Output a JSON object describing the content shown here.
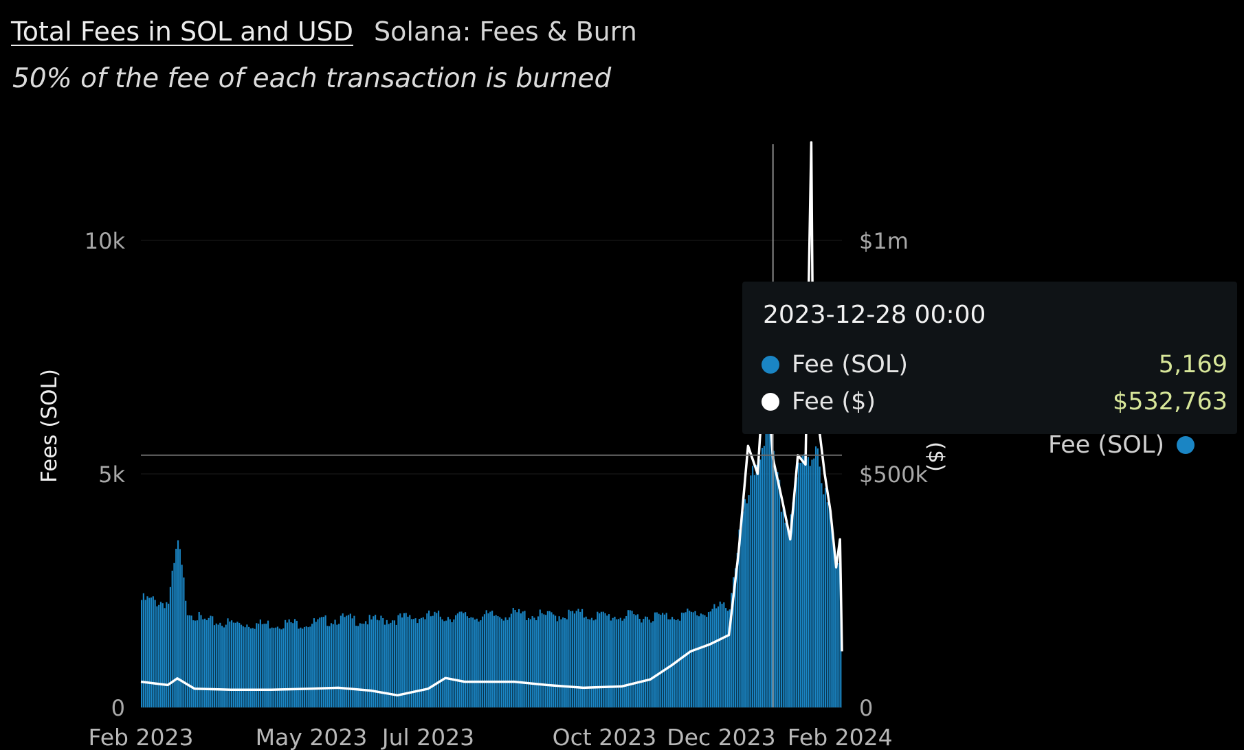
{
  "header": {
    "title": "Total Fees in SOL and USD",
    "source": "Solana: Fees & Burn",
    "subtitle": "50% of the fee of each transaction is burned"
  },
  "tooltip": {
    "date": "2023-12-28 00:00",
    "rows": [
      {
        "label": "Fee (SOL)",
        "value": "5,169",
        "color": "#1a85c4"
      },
      {
        "label": "Fee ($)",
        "value": "$532,763",
        "color": "#ffffff"
      }
    ]
  },
  "legend": {
    "items": [
      {
        "label": "Fee (SOL)",
        "color": "#1a85c4"
      }
    ]
  },
  "colors": {
    "background": "#000000",
    "sol_bars": "#1a85c4",
    "usd_line": "#ffffff",
    "tooltip_value": "#d8e79a"
  },
  "chart_data": {
    "type": "bar",
    "title": "Total Fees in SOL and USD",
    "ylabel": "Fees (SOL)",
    "y2label": "($)",
    "ylim": [
      0,
      10000
    ],
    "y2lim": [
      0,
      1000000
    ],
    "yticks": [
      {
        "value": 0,
        "label": "0"
      },
      {
        "value": 5000,
        "label": "5k"
      },
      {
        "value": 10000,
        "label": "10k"
      }
    ],
    "y2ticks": [
      {
        "value": 0,
        "label": "0"
      },
      {
        "value": 500000,
        "label": "$500k"
      },
      {
        "value": 1000000,
        "label": "$1m"
      }
    ],
    "xticks": [
      "Feb 2023",
      "May 2023",
      "Jul 2023",
      "Oct 2023",
      "Dec 2023",
      "Feb 2024"
    ],
    "xticks_dates": [
      "2023-02-01",
      "2023-05-01",
      "2023-07-01",
      "2023-10-01",
      "2023-12-01",
      "2024-02-01"
    ],
    "xlim": [
      "2023-02-01",
      "2024-02-02"
    ],
    "hover_date": "2023-12-28",
    "hover_level_sol": 5400,
    "grid": true,
    "legend_position": "right",
    "series": [
      {
        "name": "Fee (SOL)",
        "type": "bar",
        "axis": "left",
        "points": [
          [
            "2023-02-01",
            2300
          ],
          [
            "2023-02-15",
            2250
          ],
          [
            "2023-02-20",
            3500
          ],
          [
            "2023-02-25",
            2100
          ],
          [
            "2023-03-05",
            1850
          ],
          [
            "2023-03-20",
            1800
          ],
          [
            "2023-04-05",
            1780
          ],
          [
            "2023-04-20",
            1800
          ],
          [
            "2023-05-01",
            1800
          ],
          [
            "2023-05-15",
            1900
          ],
          [
            "2023-06-01",
            1850
          ],
          [
            "2023-06-15",
            1900
          ],
          [
            "2023-07-01",
            1950
          ],
          [
            "2023-07-15",
            1950
          ],
          [
            "2023-08-01",
            1950
          ],
          [
            "2023-08-15",
            2000
          ],
          [
            "2023-09-01",
            1950
          ],
          [
            "2023-09-15",
            2000
          ],
          [
            "2023-10-01",
            1950
          ],
          [
            "2023-10-15",
            1950
          ],
          [
            "2023-11-01",
            1950
          ],
          [
            "2023-11-15",
            2000
          ],
          [
            "2023-11-25",
            2050
          ],
          [
            "2023-12-01",
            2150
          ],
          [
            "2023-12-05",
            2200
          ],
          [
            "2023-12-10",
            3700
          ],
          [
            "2023-12-15",
            4500
          ],
          [
            "2023-12-20",
            5400
          ],
          [
            "2023-12-25",
            6200
          ],
          [
            "2023-12-28",
            5169
          ],
          [
            "2024-01-01",
            4400
          ],
          [
            "2024-01-05",
            3900
          ],
          [
            "2024-01-08",
            4700
          ],
          [
            "2024-01-12",
            5200
          ],
          [
            "2024-01-16",
            5300
          ],
          [
            "2024-01-20",
            5800
          ],
          [
            "2024-01-23",
            4600
          ],
          [
            "2024-01-26",
            4200
          ],
          [
            "2024-01-29",
            3200
          ],
          [
            "2024-02-01",
            3100
          ],
          [
            "2024-02-02",
            950
          ]
        ]
      },
      {
        "name": "Fee ($)",
        "type": "line",
        "axis": "right",
        "points": [
          [
            "2023-02-01",
            55000
          ],
          [
            "2023-02-15",
            48000
          ],
          [
            "2023-02-20",
            62000
          ],
          [
            "2023-03-01",
            40000
          ],
          [
            "2023-03-20",
            38000
          ],
          [
            "2023-04-10",
            38000
          ],
          [
            "2023-05-01",
            40000
          ],
          [
            "2023-05-15",
            42000
          ],
          [
            "2023-06-01",
            36000
          ],
          [
            "2023-06-15",
            26000
          ],
          [
            "2023-07-01",
            40000
          ],
          [
            "2023-07-10",
            63000
          ],
          [
            "2023-07-20",
            55000
          ],
          [
            "2023-08-15",
            55000
          ],
          [
            "2023-09-01",
            48000
          ],
          [
            "2023-09-20",
            42000
          ],
          [
            "2023-10-10",
            45000
          ],
          [
            "2023-10-25",
            60000
          ],
          [
            "2023-11-05",
            90000
          ],
          [
            "2023-11-15",
            120000
          ],
          [
            "2023-11-25",
            135000
          ],
          [
            "2023-12-05",
            155000
          ],
          [
            "2023-12-10",
            330000
          ],
          [
            "2023-12-15",
            560000
          ],
          [
            "2023-12-20",
            500000
          ],
          [
            "2023-12-24",
            760000
          ],
          [
            "2023-12-28",
            532763
          ],
          [
            "2024-01-02",
            440000
          ],
          [
            "2024-01-06",
            360000
          ],
          [
            "2024-01-10",
            540000
          ],
          [
            "2024-01-14",
            520000
          ],
          [
            "2024-01-17",
            1210000
          ],
          [
            "2024-01-18",
            700000
          ],
          [
            "2024-01-21",
            600000
          ],
          [
            "2024-01-24",
            500000
          ],
          [
            "2024-01-27",
            420000
          ],
          [
            "2024-01-30",
            300000
          ],
          [
            "2024-02-01",
            360000
          ],
          [
            "2024-02-02",
            120000
          ]
        ]
      }
    ]
  }
}
